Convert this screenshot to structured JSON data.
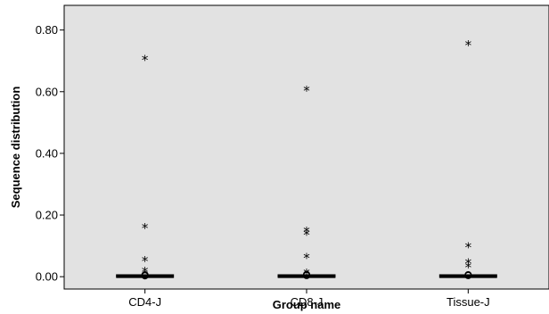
{
  "chart_data": {
    "type": "box",
    "title": "",
    "xlabel": "Group name",
    "ylabel": "Sequence distribution",
    "ylim": [
      -0.04,
      0.88
    ],
    "yticks": [
      0.0,
      0.2,
      0.4,
      0.6,
      0.8
    ],
    "ytick_labels": [
      "0.00",
      "0.20",
      "0.40",
      "0.60",
      "0.80"
    ],
    "grid": false,
    "colors": {
      "plot_background": "#e2e2e2",
      "marks": "#000000"
    },
    "categories": [
      "CD4-J",
      "CD8-J",
      "Tissue-J"
    ],
    "boxes": [
      {
        "category": "CD4-J",
        "median": 0.0,
        "q1": 0.0,
        "q3": 0.002,
        "whisker_low": 0.0,
        "whisker_high": 0.004,
        "outliers": [
          0.003,
          0.006
        ],
        "extremes": [
          0.705,
          0.16,
          0.052,
          0.018
        ]
      },
      {
        "category": "CD8-J",
        "median": 0.0,
        "q1": 0.0,
        "q3": 0.002,
        "whisker_low": 0.0,
        "whisker_high": 0.004,
        "outliers": [
          0.004,
          0.007
        ],
        "extremes": [
          0.605,
          0.148,
          0.138,
          0.062,
          0.012
        ]
      },
      {
        "category": "Tissue-J",
        "median": 0.0,
        "q1": 0.0,
        "q3": 0.002,
        "whisker_low": 0.0,
        "whisker_high": 0.004,
        "outliers": [
          0.004,
          0.006
        ],
        "extremes": [
          0.752,
          0.098,
          0.045,
          0.032
        ]
      }
    ]
  }
}
